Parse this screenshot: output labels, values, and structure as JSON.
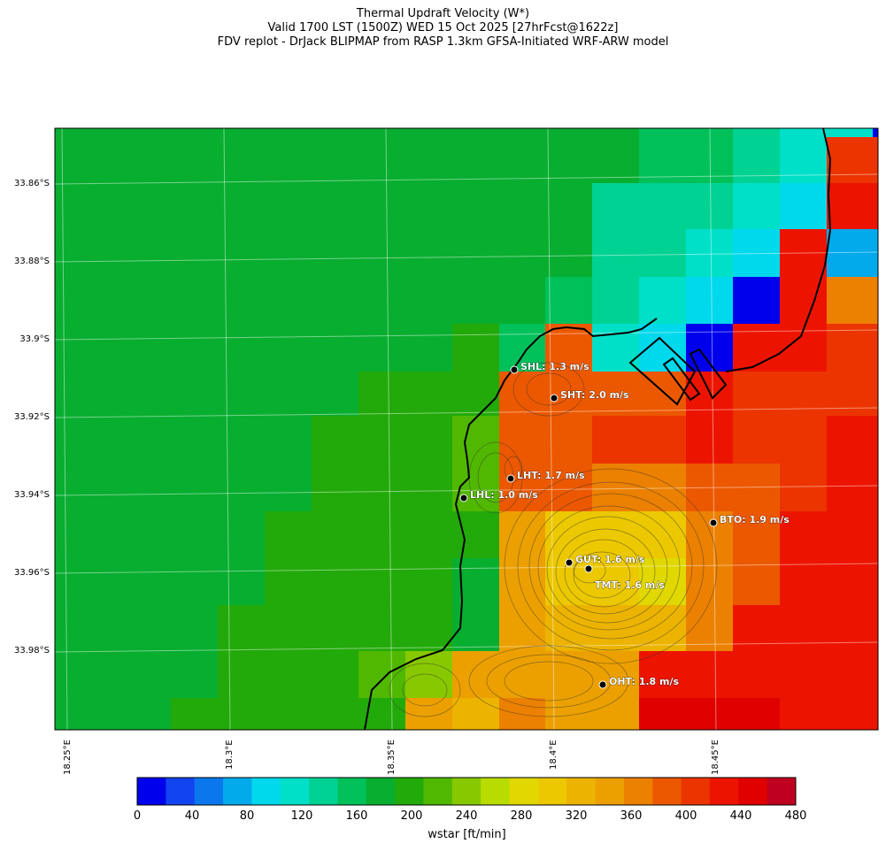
{
  "title": {
    "line1": "Thermal Updraft Velocity (W*)",
    "line2": "Valid 1700 LST (1500Z) WED 15 Oct 2025 [27hrFcst@1622z]",
    "line3": "FDV replot - DrJack BLIPMAP from RASP 1.3km GFSA-Initiated WRF-ARW model"
  },
  "axes": {
    "lat_labels": [
      "33.86°S",
      "33.88°S",
      "33.9°S",
      "33.92°S",
      "33.94°S",
      "33.96°S",
      "33.98°S"
    ],
    "lon_labels": [
      "18.25°E",
      "18.3°E",
      "18.35°E",
      "18.4°E",
      "18.45°E"
    ]
  },
  "stations": [
    {
      "code": "SHL",
      "label": "SHL: 1.3 m/s"
    },
    {
      "code": "SHT",
      "label": "SHT: 2.0 m/s"
    },
    {
      "code": "LHT",
      "label": "LHT: 1.7 m/s"
    },
    {
      "code": "LHL",
      "label": "LHL: 1.0 m/s"
    },
    {
      "code": "BTO",
      "label": "BTO: 1.9 m/s"
    },
    {
      "code": "GUT",
      "label": "GUT: 1.6 m/s"
    },
    {
      "code": "TMT",
      "label": "TMT: 1.6 m/s"
    },
    {
      "code": "OHT",
      "label": "OHT: 1.8 m/s"
    }
  ],
  "colorbar": {
    "title": "wstar [ft/min]",
    "tick_labels": [
      "0",
      "40",
      "80",
      "120",
      "160",
      "200",
      "240",
      "280",
      "320",
      "360",
      "400",
      "440",
      "480"
    ],
    "colors": [
      "#0000ec",
      "#1244f0",
      "#0a78ec",
      "#02aaec",
      "#00d8ec",
      "#00e0c8",
      "#00d294",
      "#00c05a",
      "#08ae30",
      "#22aa0a",
      "#50b800",
      "#88c800",
      "#b8dc00",
      "#e0d800",
      "#ecc800",
      "#ecb400",
      "#eca000",
      "#ec8000",
      "#ec5800",
      "#ec3400",
      "#ec1400",
      "#e00000",
      "#c00020"
    ]
  }
}
